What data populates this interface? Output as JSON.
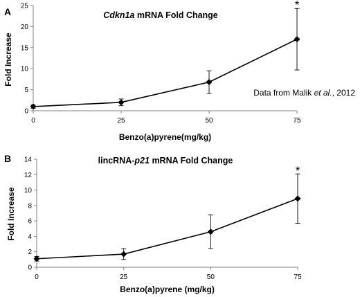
{
  "chart_data": [
    {
      "panel": "A",
      "type": "line",
      "title_parts": [
        {
          "text": "Cdkn1a",
          "italic": true
        },
        {
          "text": " mRNA Fold Change",
          "italic": false
        }
      ],
      "xlabel": "Benzo(a)pyrene(mg/kg)",
      "ylabel": "Fold Increase",
      "x": [
        0,
        25,
        50,
        75
      ],
      "series": [
        {
          "values": [
            1.0,
            2.0,
            6.8,
            17.0
          ],
          "error": [
            0.4,
            0.8,
            2.7,
            7.3
          ]
        }
      ],
      "xlim": [
        0,
        75
      ],
      "ylim": [
        0,
        25
      ],
      "xticks": [
        0,
        25,
        50,
        75
      ],
      "yticks": [
        0,
        5,
        10,
        15,
        20,
        25
      ],
      "annotations": [
        {
          "text": "*",
          "x": 75,
          "y": 26.2
        },
        {
          "text_parts": [
            {
              "text": "Data from Malik ",
              "italic": false
            },
            {
              "text": "et al.",
              "italic": true
            },
            {
              "text": ", 2012",
              "italic": false
            }
          ]
        }
      ],
      "grid": false
    },
    {
      "panel": "B",
      "type": "line",
      "title_parts": [
        {
          "text": "lincRNA-",
          "italic": false
        },
        {
          "text": "p21",
          "italic": true
        },
        {
          "text": " mRNA Fold Change",
          "italic": false
        }
      ],
      "xlabel": "Benzo(a)pyrene (mg/kg)",
      "ylabel": "Fold Increase",
      "x": [
        0,
        25,
        50,
        75
      ],
      "series": [
        {
          "values": [
            1.1,
            1.7,
            4.6,
            8.9
          ],
          "error": [
            0.3,
            0.7,
            2.2,
            3.2
          ]
        }
      ],
      "xlim": [
        0,
        75
      ],
      "ylim": [
        0,
        14
      ],
      "xticks": [
        0,
        25,
        50,
        75
      ],
      "yticks": [
        0,
        2,
        4,
        6,
        8,
        10,
        12,
        14
      ],
      "annotations": [
        {
          "text": "*",
          "x": 75,
          "y": 13.1
        }
      ],
      "grid": false
    }
  ]
}
